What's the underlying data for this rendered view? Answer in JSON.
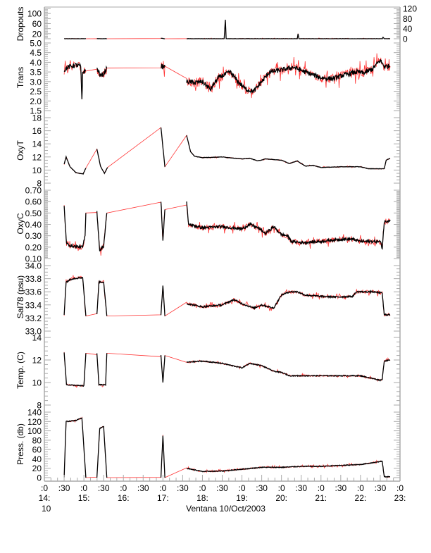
{
  "chart_data": {
    "type": "line",
    "title": "",
    "colors": {
      "data": "#000000",
      "gap": "#ff0000",
      "axis": "#aaaaaa"
    },
    "x_axis": {
      "xlim": [
        14.0,
        23.0
      ],
      "ticks": [
        14.0,
        14.5,
        15.0,
        15.5,
        16.0,
        16.5,
        17.0,
        17.5,
        18.0,
        18.5,
        19.0,
        19.5,
        20.0,
        20.5,
        21.0,
        21.5,
        22.0,
        22.5,
        23.0
      ],
      "tick_labels": [
        ":0",
        ":30",
        ":0",
        ":30",
        ":0",
        ":30",
        ":0",
        ":30",
        ":0",
        ":30",
        ":0",
        ":30",
        ":0",
        ":30",
        ":0",
        ":30",
        ":0",
        ":30",
        ":0"
      ],
      "hour_ticks": [
        14,
        15,
        16,
        17,
        18,
        19,
        20,
        21,
        22,
        23
      ],
      "hour_labels": [
        "14:",
        "15:",
        "16:",
        "17:",
        "18:",
        "19:",
        "20:",
        "21:",
        "22:",
        "23:"
      ],
      "day_label": "10",
      "xlabel": "Ventana 10/Oct/2003"
    },
    "panels": [
      {
        "name": "dropouts",
        "ylabel": "Dropouts",
        "ylim": [
          0,
          120
        ],
        "ticks": [
          0,
          20,
          40,
          60,
          80,
          100,
          120
        ],
        "tick_labels": [
          "0",
          "20",
          "40",
          "60",
          "80",
          "100",
          "120"
        ],
        "noise": 0.6,
        "segments": [
          [
            [
              14.5,
              0
            ],
            [
              15.05,
              0
            ]
          ],
          [
            [
              15.33,
              0
            ],
            [
              15.58,
              0
            ]
          ],
          [
            [
              16.95,
              2
            ],
            [
              17.05,
              0
            ]
          ],
          [
            [
              17.6,
              0
            ],
            [
              18.55,
              0
            ],
            [
              18.58,
              75
            ],
            [
              18.6,
              0
            ],
            [
              20.4,
              0
            ],
            [
              20.42,
              20
            ],
            [
              20.44,
              0
            ],
            [
              22.55,
              0
            ],
            [
              22.57,
              6
            ],
            [
              22.6,
              0
            ],
            [
              22.75,
              0
            ]
          ]
        ]
      },
      {
        "name": "trans",
        "ylabel": "Trans",
        "ylim": [
          1.5,
          5.0
        ],
        "ticks": [
          1.5,
          2.0,
          2.5,
          3.0,
          3.5,
          4.0,
          4.5,
          5.0
        ],
        "tick_labels": [
          "1.5",
          "2.0",
          "2.5",
          "3.0",
          "3.5",
          "4.0",
          "4.5",
          "5.0"
        ],
        "noise": 0.12,
        "segments": [
          [
            [
              14.5,
              3.6
            ],
            [
              14.6,
              3.75
            ],
            [
              14.8,
              3.85
            ],
            [
              14.92,
              3.8
            ],
            [
              14.95,
              2.0
            ],
            [
              14.97,
              3.5
            ],
            [
              15.05,
              3.55
            ]
          ],
          [
            [
              15.33,
              3.7
            ],
            [
              15.42,
              3.3
            ],
            [
              15.5,
              3.4
            ],
            [
              15.58,
              3.7
            ]
          ],
          [
            [
              16.95,
              3.8
            ],
            [
              17.0,
              3.75
            ],
            [
              17.05,
              3.8
            ]
          ],
          [
            [
              17.6,
              3.0
            ],
            [
              17.8,
              2.95
            ],
            [
              18.0,
              3.0
            ],
            [
              18.2,
              2.6
            ],
            [
              18.4,
              3.2
            ],
            [
              18.7,
              3.5
            ],
            [
              18.9,
              3.0
            ],
            [
              19.1,
              2.6
            ],
            [
              19.3,
              2.5
            ],
            [
              19.5,
              3.0
            ],
            [
              19.7,
              3.5
            ],
            [
              20.0,
              3.6
            ],
            [
              20.3,
              3.75
            ],
            [
              20.6,
              3.5
            ],
            [
              21.0,
              3.2
            ],
            [
              21.3,
              3.15
            ],
            [
              21.6,
              3.35
            ],
            [
              21.9,
              3.5
            ],
            [
              22.1,
              3.45
            ],
            [
              22.3,
              3.65
            ],
            [
              22.5,
              4.1
            ],
            [
              22.6,
              3.8
            ],
            [
              22.75,
              3.8
            ]
          ]
        ]
      },
      {
        "name": "oxyt",
        "ylabel": "OxyT",
        "ylim": [
          8,
          18
        ],
        "ticks": [
          8,
          10,
          12,
          14,
          16,
          18
        ],
        "tick_labels": [
          "8",
          "10",
          "12",
          "14",
          "16",
          "18"
        ],
        "noise": 0.03,
        "segments": [
          [
            [
              14.5,
              10.9
            ],
            [
              14.55,
              12.0
            ],
            [
              14.65,
              10.5
            ],
            [
              14.8,
              9.6
            ],
            [
              14.98,
              9.4
            ],
            [
              15.05,
              10.3
            ]
          ],
          [
            [
              15.33,
              13.2
            ],
            [
              15.42,
              10.6
            ],
            [
              15.52,
              9.5
            ],
            [
              15.6,
              10.4
            ]
          ],
          [
            [
              16.95,
              16.5
            ],
            [
              17.05,
              10.5
            ]
          ],
          [
            [
              17.6,
              15.3
            ],
            [
              17.7,
              12.8
            ],
            [
              17.8,
              12.1
            ],
            [
              18.0,
              11.9
            ],
            [
              18.5,
              12.0
            ],
            [
              19.0,
              11.7
            ],
            [
              19.2,
              11.8
            ],
            [
              19.4,
              11.4
            ],
            [
              19.6,
              11.7
            ],
            [
              19.8,
              11.6
            ],
            [
              20.0,
              11.5
            ],
            [
              20.2,
              11.0
            ],
            [
              20.4,
              11.4
            ],
            [
              20.6,
              10.6
            ],
            [
              20.8,
              10.7
            ],
            [
              21.0,
              10.4
            ],
            [
              21.5,
              10.5
            ],
            [
              22.0,
              10.5
            ],
            [
              22.2,
              10.2
            ],
            [
              22.6,
              10.2
            ],
            [
              22.65,
              11.5
            ],
            [
              22.75,
              11.8
            ]
          ]
        ]
      },
      {
        "name": "oxyc",
        "ylabel": "OxyC",
        "ylim": [
          0.1,
          0.7
        ],
        "ticks": [
          0.1,
          0.2,
          0.3,
          0.4,
          0.5,
          0.6,
          0.7
        ],
        "tick_labels": [
          "0.10",
          "0.20",
          "0.30",
          "0.40",
          "0.50",
          "0.60",
          "0.70"
        ],
        "noise": 0.012,
        "segments": [
          [
            [
              14.5,
              0.56
            ],
            [
              14.56,
              0.23
            ],
            [
              14.7,
              0.21
            ],
            [
              14.97,
              0.2
            ],
            [
              15.03,
              0.3
            ],
            [
              15.05,
              0.5
            ]
          ],
          [
            [
              15.33,
              0.51
            ],
            [
              15.4,
              0.17
            ],
            [
              15.5,
              0.21
            ],
            [
              15.58,
              0.5
            ]
          ],
          [
            [
              16.95,
              0.61
            ],
            [
              17.0,
              0.26
            ],
            [
              17.05,
              0.53
            ]
          ],
          [
            [
              17.6,
              0.59
            ],
            [
              17.65,
              0.4
            ],
            [
              18.0,
              0.37
            ],
            [
              18.5,
              0.38
            ],
            [
              19.0,
              0.36
            ],
            [
              19.2,
              0.4
            ],
            [
              19.4,
              0.37
            ],
            [
              19.6,
              0.32
            ],
            [
              19.8,
              0.38
            ],
            [
              20.0,
              0.31
            ],
            [
              20.15,
              0.3
            ],
            [
              20.25,
              0.25
            ],
            [
              20.5,
              0.24
            ],
            [
              21.0,
              0.25
            ],
            [
              21.5,
              0.27
            ],
            [
              21.8,
              0.27
            ],
            [
              22.0,
              0.25
            ],
            [
              22.5,
              0.25
            ],
            [
              22.55,
              0.19
            ],
            [
              22.6,
              0.42
            ],
            [
              22.75,
              0.44
            ]
          ]
        ]
      },
      {
        "name": "sal78",
        "ylabel": "Sal78 (psu)",
        "ylim": [
          33.0,
          34.0
        ],
        "ticks": [
          33.0,
          33.2,
          33.4,
          33.6,
          33.8,
          34.0
        ],
        "tick_labels": [
          "33.0",
          "33.2",
          "33.4",
          "33.6",
          "33.8",
          "34.0"
        ],
        "noise": 0.012,
        "segments": [
          [
            [
              14.5,
              33.25
            ],
            [
              14.55,
              33.75
            ],
            [
              14.7,
              33.8
            ],
            [
              14.97,
              33.82
            ],
            [
              15.05,
              33.23
            ]
          ],
          [
            [
              15.33,
              33.25
            ],
            [
              15.38,
              33.75
            ],
            [
              15.5,
              33.75
            ],
            [
              15.58,
              33.23
            ]
          ],
          [
            [
              16.95,
              33.25
            ],
            [
              17.0,
              33.7
            ],
            [
              17.05,
              33.23
            ]
          ],
          [
            [
              17.6,
              33.42
            ],
            [
              18.0,
              33.37
            ],
            [
              18.5,
              33.4
            ],
            [
              18.8,
              33.48
            ],
            [
              19.0,
              33.42
            ],
            [
              19.3,
              33.35
            ],
            [
              19.5,
              33.4
            ],
            [
              19.8,
              33.35
            ],
            [
              20.0,
              33.55
            ],
            [
              20.2,
              33.6
            ],
            [
              20.4,
              33.6
            ],
            [
              20.6,
              33.55
            ],
            [
              21.0,
              33.53
            ],
            [
              21.4,
              33.52
            ],
            [
              21.8,
              33.53
            ],
            [
              21.9,
              33.6
            ],
            [
              22.3,
              33.6
            ],
            [
              22.55,
              33.58
            ],
            [
              22.6,
              33.25
            ],
            [
              22.75,
              33.25
            ]
          ]
        ]
      },
      {
        "name": "temp",
        "ylabel": "Temp. (C)",
        "ylim": [
          8,
          14
        ],
        "ticks": [
          8,
          10,
          12,
          14
        ],
        "tick_labels": [
          "8",
          "10",
          "12",
          "14"
        ],
        "noise": 0.04,
        "segments": [
          [
            [
              14.5,
              12.7
            ],
            [
              14.56,
              9.8
            ],
            [
              15.0,
              9.7
            ],
            [
              15.05,
              12.6
            ]
          ],
          [
            [
              15.33,
              12.6
            ],
            [
              15.38,
              9.8
            ],
            [
              15.55,
              9.8
            ],
            [
              15.58,
              12.6
            ]
          ],
          [
            [
              16.95,
              12.4
            ],
            [
              17.0,
              10.0
            ],
            [
              17.05,
              12.4
            ]
          ],
          [
            [
              17.6,
              11.8
            ],
            [
              18.0,
              11.9
            ],
            [
              18.5,
              11.7
            ],
            [
              19.0,
              11.3
            ],
            [
              19.2,
              11.7
            ],
            [
              19.5,
              11.5
            ],
            [
              19.8,
              11.0
            ],
            [
              20.0,
              10.9
            ],
            [
              20.2,
              10.6
            ],
            [
              20.5,
              10.6
            ],
            [
              21.0,
              10.6
            ],
            [
              21.5,
              10.6
            ],
            [
              22.0,
              10.6
            ],
            [
              22.5,
              10.2
            ],
            [
              22.55,
              10.3
            ],
            [
              22.6,
              11.9
            ],
            [
              22.75,
              12.0
            ]
          ]
        ]
      },
      {
        "name": "press",
        "ylabel": "Press. (db)",
        "ylim": [
          0,
          140
        ],
        "ticks": [
          0,
          20,
          40,
          60,
          80,
          100,
          120,
          140
        ],
        "tick_labels": [
          "0",
          "20",
          "40",
          "60",
          "80",
          "100",
          "120",
          "140"
        ],
        "noise": 0.8,
        "segments": [
          [
            [
              14.5,
              0
            ],
            [
              14.55,
              120
            ],
            [
              14.8,
              122
            ],
            [
              14.95,
              128
            ],
            [
              15.05,
              0
            ]
          ],
          [
            [
              15.33,
              0
            ],
            [
              15.4,
              105
            ],
            [
              15.5,
              110
            ],
            [
              15.58,
              0
            ]
          ],
          [
            [
              16.95,
              0
            ],
            [
              17.0,
              90
            ],
            [
              17.05,
              0
            ]
          ],
          [
            [
              17.6,
              20
            ],
            [
              18.0,
              13
            ],
            [
              18.5,
              14
            ],
            [
              19.0,
              18
            ],
            [
              19.5,
              22
            ],
            [
              20.0,
              22
            ],
            [
              20.5,
              24
            ],
            [
              21.0,
              24
            ],
            [
              21.5,
              26
            ],
            [
              22.0,
              28
            ],
            [
              22.55,
              35
            ],
            [
              22.6,
              2
            ],
            [
              22.75,
              2
            ]
          ]
        ]
      }
    ]
  }
}
